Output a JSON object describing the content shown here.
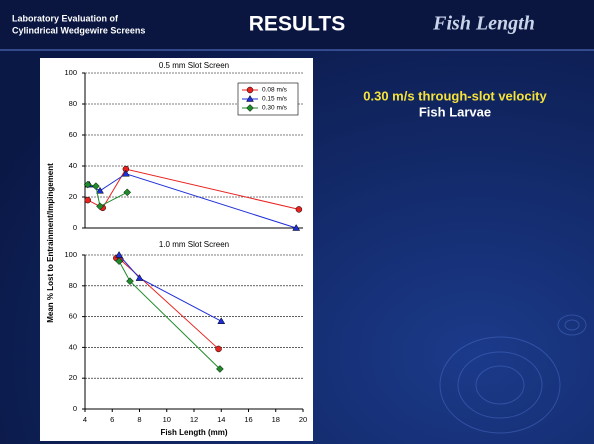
{
  "header": {
    "left_title": [
      "Laboratory Evaluation of",
      "Cylindrical Wedgewire Screens"
    ],
    "title": "RESULTS",
    "subtitle": "Fish Length"
  },
  "side_text": {
    "heading": "0.30 m/s through-slot velocity",
    "subheading": "Fish Larvae"
  },
  "figure": {
    "ylabel": "Mean % Lost to Entrainment/Impingement",
    "xlabel": "Fish Length (mm)"
  },
  "chart_data": [
    {
      "type": "line",
      "title": "0.5 mm Slot Screen",
      "xlim": [
        4,
        20
      ],
      "ylim": [
        0,
        100
      ],
      "yticks": [
        0,
        20,
        40,
        60,
        80,
        100
      ],
      "grid": true,
      "legend": "upper right",
      "series": [
        {
          "name": "0.08 m/s",
          "color": "#e8231f",
          "marker": "circle",
          "x": [
            4.2,
            5.3,
            7.0,
            19.7
          ],
          "values": [
            18,
            13,
            38,
            12
          ]
        },
        {
          "name": "0.15 m/s",
          "color": "#1f2fd8",
          "marker": "triangle",
          "x": [
            4.3,
            5.1,
            7.0,
            19.5
          ],
          "values": [
            28,
            24,
            35,
            0
          ]
        },
        {
          "name": "0.30 m/s",
          "color": "#1f8a2a",
          "marker": "diamond",
          "x": [
            4.2,
            4.8,
            5.1,
            7.1
          ],
          "values": [
            28,
            27,
            14,
            23
          ]
        }
      ]
    },
    {
      "type": "line",
      "title": "1.0 mm Slot Screen",
      "xlim": [
        4,
        20
      ],
      "ylim": [
        0,
        100
      ],
      "xticks": [
        4,
        6,
        8,
        10,
        12,
        14,
        16,
        18,
        20
      ],
      "yticks": [
        0,
        20,
        40,
        60,
        80,
        100
      ],
      "grid": true,
      "series": [
        {
          "name": "0.08 m/s",
          "color": "#e8231f",
          "marker": "circle",
          "x": [
            6.3,
            6.6,
            13.8
          ],
          "values": [
            98,
            97,
            39
          ]
        },
        {
          "name": "0.15 m/s",
          "color": "#1f2fd8",
          "marker": "triangle",
          "x": [
            6.5,
            8.0,
            14.0
          ],
          "values": [
            100,
            85,
            57
          ]
        },
        {
          "name": "0.30 m/s",
          "color": "#1f8a2a",
          "marker": "diamond",
          "x": [
            6.5,
            7.3,
            13.9
          ],
          "values": [
            96,
            83,
            26
          ]
        }
      ]
    }
  ]
}
